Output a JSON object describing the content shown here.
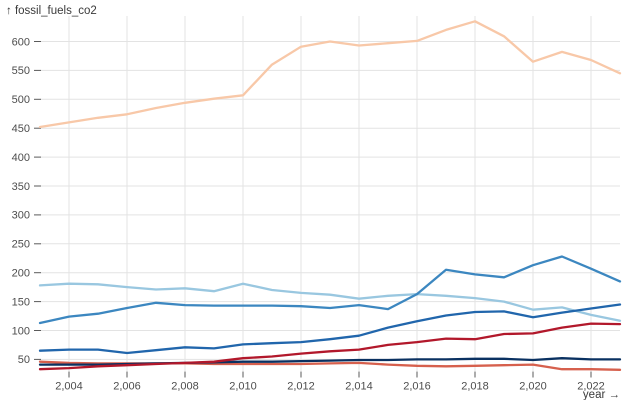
{
  "y_axis_title": "↑ fossil_fuels_co2",
  "x_axis_title": "year →",
  "colors": {
    "background": "#ffffff",
    "gridline": "#e3e3e3",
    "tick_mark": "#5a5a5a",
    "tick_text": "#4d4d4d",
    "title_text": "#3a3a3a"
  },
  "chart_data": {
    "type": "line",
    "title": "fossil_fuels_co2 over year",
    "xlabel": "year",
    "ylabel": "fossil_fuels_co2",
    "grid": true,
    "legend": "none",
    "x_domain": [
      2003,
      2023
    ],
    "y_domain": [
      30,
      645
    ],
    "x_ticks": [
      2004,
      2006,
      2008,
      2010,
      2012,
      2014,
      2016,
      2018,
      2020,
      2022
    ],
    "x_tick_labels": [
      "2,004",
      "2,006",
      "2,008",
      "2,010",
      "2,012",
      "2,014",
      "2,016",
      "2,018",
      "2,020",
      "2,022"
    ],
    "y_ticks": [
      50,
      100,
      150,
      200,
      250,
      300,
      350,
      400,
      450,
      500,
      550,
      600
    ],
    "x": [
      2003,
      2004,
      2005,
      2006,
      2007,
      2008,
      2009,
      2010,
      2011,
      2012,
      2013,
      2014,
      2015,
      2016,
      2017,
      2018,
      2019,
      2020,
      2021,
      2022,
      2023
    ],
    "series": [
      {
        "name": "series-peach",
        "color": "#f8c8a8",
        "values": [
          452,
          460,
          468,
          474,
          485,
          494,
          501,
          507,
          560,
          591,
          600,
          593,
          597,
          601,
          620,
          635,
          609,
          565,
          582,
          568,
          545
        ]
      },
      {
        "name": "series-light-blue",
        "color": "#99c7e0",
        "values": [
          178,
          181,
          180,
          175,
          171,
          173,
          168,
          181,
          170,
          165,
          162,
          155,
          160,
          163,
          160,
          156,
          150,
          136,
          140,
          127,
          117
        ]
      },
      {
        "name": "series-salmon",
        "color": "#d6604d",
        "values": [
          46,
          44,
          43,
          43,
          43,
          43,
          42,
          42,
          42,
          42,
          43,
          44,
          41,
          39,
          38,
          39,
          40,
          41,
          33,
          33,
          32
        ]
      },
      {
        "name": "series-navy",
        "color": "#0a3161",
        "values": [
          41,
          41,
          41,
          42,
          43,
          44,
          45,
          46,
          46,
          47,
          48,
          49,
          49,
          50,
          50,
          51,
          51,
          49,
          52,
          50,
          50
        ]
      },
      {
        "name": "series-crimson",
        "color": "#b2182b",
        "values": [
          33,
          35,
          38,
          40,
          42,
          44,
          46,
          52,
          55,
          60,
          64,
          67,
          75,
          80,
          86,
          85,
          94,
          95,
          105,
          112,
          111
        ]
      },
      {
        "name": "series-dark-blue",
        "color": "#2166ac",
        "values": [
          65,
          67,
          67,
          61,
          66,
          71,
          69,
          76,
          78,
          80,
          85,
          91,
          105,
          116,
          126,
          132,
          133,
          123,
          131,
          138,
          145
        ]
      },
      {
        "name": "series-mid-blue",
        "color": "#3c87c0",
        "values": [
          113,
          124,
          129,
          139,
          148,
          144,
          143,
          143,
          143,
          142,
          139,
          144,
          137,
          163,
          205,
          197,
          192,
          213,
          228,
          207,
          185
        ]
      }
    ]
  }
}
